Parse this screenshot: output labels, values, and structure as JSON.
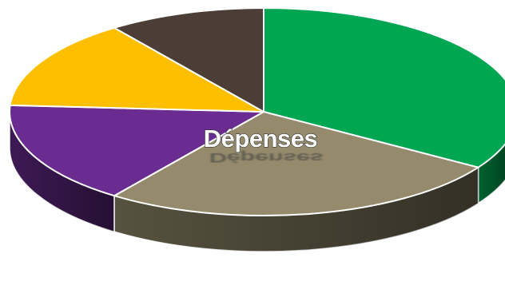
{
  "chart_data": {
    "type": "pie",
    "title": "Dépenses",
    "slices": [
      {
        "value": 34,
        "color": "#00a651"
      },
      {
        "value": 26,
        "color": "#958b6c"
      },
      {
        "value": 16,
        "color": "#6a2c91"
      },
      {
        "value": 14,
        "color": "#fdbf00"
      },
      {
        "value": 10,
        "color": "#4c3e36"
      }
    ],
    "start_angle_deg": -90,
    "three_d": true,
    "legend": "none",
    "data_labels": false
  }
}
